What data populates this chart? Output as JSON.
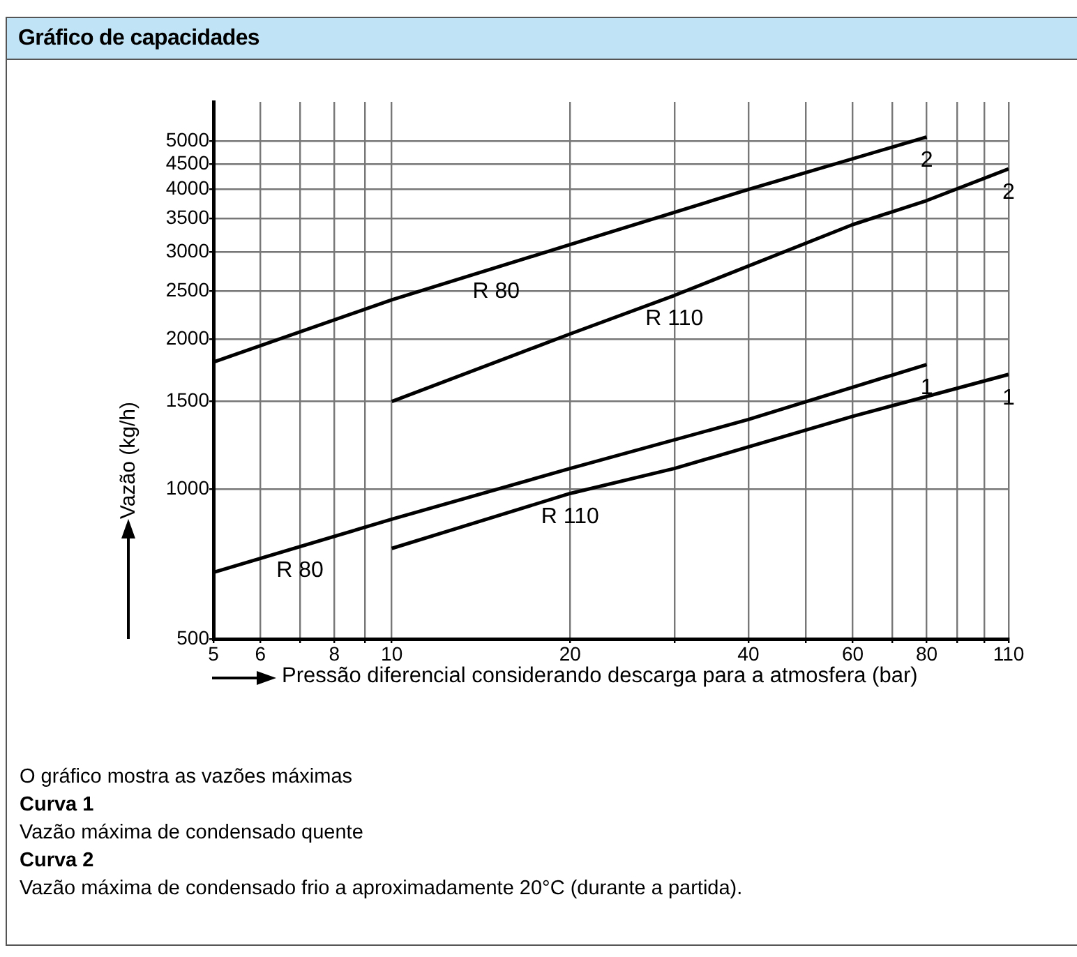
{
  "chart_data": {
    "type": "line",
    "title": "Gráfico de capacidades",
    "xlabel": "Pressão diferencial considerando descarga para a atmosfera (bar)",
    "ylabel": "Vazão (kg/h)",
    "log": "xy",
    "grid": true,
    "legend": false,
    "marker": "none",
    "line_style": "solid",
    "xlim": [
      5,
      110
    ],
    "ylim": [
      500,
      6000
    ],
    "xticks": [
      5,
      6,
      {
        "value": 7,
        "label": null
      },
      8,
      {
        "value": 9,
        "label": null
      },
      10,
      20,
      {
        "value": 30,
        "label": null
      },
      40,
      {
        "value": 50,
        "label": null
      },
      60,
      {
        "value": 70,
        "label": null
      },
      80,
      {
        "value": 90,
        "label": null
      },
      {
        "value": 100,
        "label": null
      },
      110
    ],
    "yticks": [
      500,
      1000,
      1500,
      2000,
      2500,
      3000,
      3500,
      4000,
      4500,
      5000
    ],
    "series": [
      {
        "color": "#000000",
        "x": [
          5,
          10,
          20,
          40,
          80
        ],
        "values": [
          1800,
          2400,
          3100,
          4000,
          5100
        ]
      },
      {
        "color": "#000000",
        "x": [
          10,
          20,
          30,
          60,
          80,
          110
        ],
        "values": [
          1500,
          2050,
          2450,
          3400,
          3800,
          4400
        ]
      },
      {
        "color": "#000000",
        "x": [
          5,
          10,
          20,
          40,
          80
        ],
        "values": [
          680,
          870,
          1100,
          1380,
          1780
        ]
      },
      {
        "color": "#000000",
        "x": [
          10,
          20,
          30,
          60,
          110
        ],
        "values": [
          760,
          980,
          1100,
          1400,
          1700
        ]
      }
    ],
    "annotations": [
      {
        "text": "R 80",
        "x": 15,
        "y": 2780
      },
      {
        "text": "R 110",
        "x": 30,
        "y": 2450
      },
      {
        "text": "R 80",
        "x": 7,
        "y": 765
      },
      {
        "text": "R 110",
        "x": 20,
        "y": 980
      },
      {
        "text": "2",
        "x": 80,
        "y": 5100
      },
      {
        "text": "2",
        "x": 110,
        "y": 4400
      },
      {
        "text": "1",
        "x": 80,
        "y": 1780
      },
      {
        "text": "1",
        "x": 110,
        "y": 1700
      },
      "O gráfico mostra as vazões máximas",
      "Curva 1",
      "Vazão máxima de condensado quente",
      "Curva 2",
      "Vazão máxima de condensado frio a aproximadamente 20°C (durante a partida)."
    ]
  }
}
